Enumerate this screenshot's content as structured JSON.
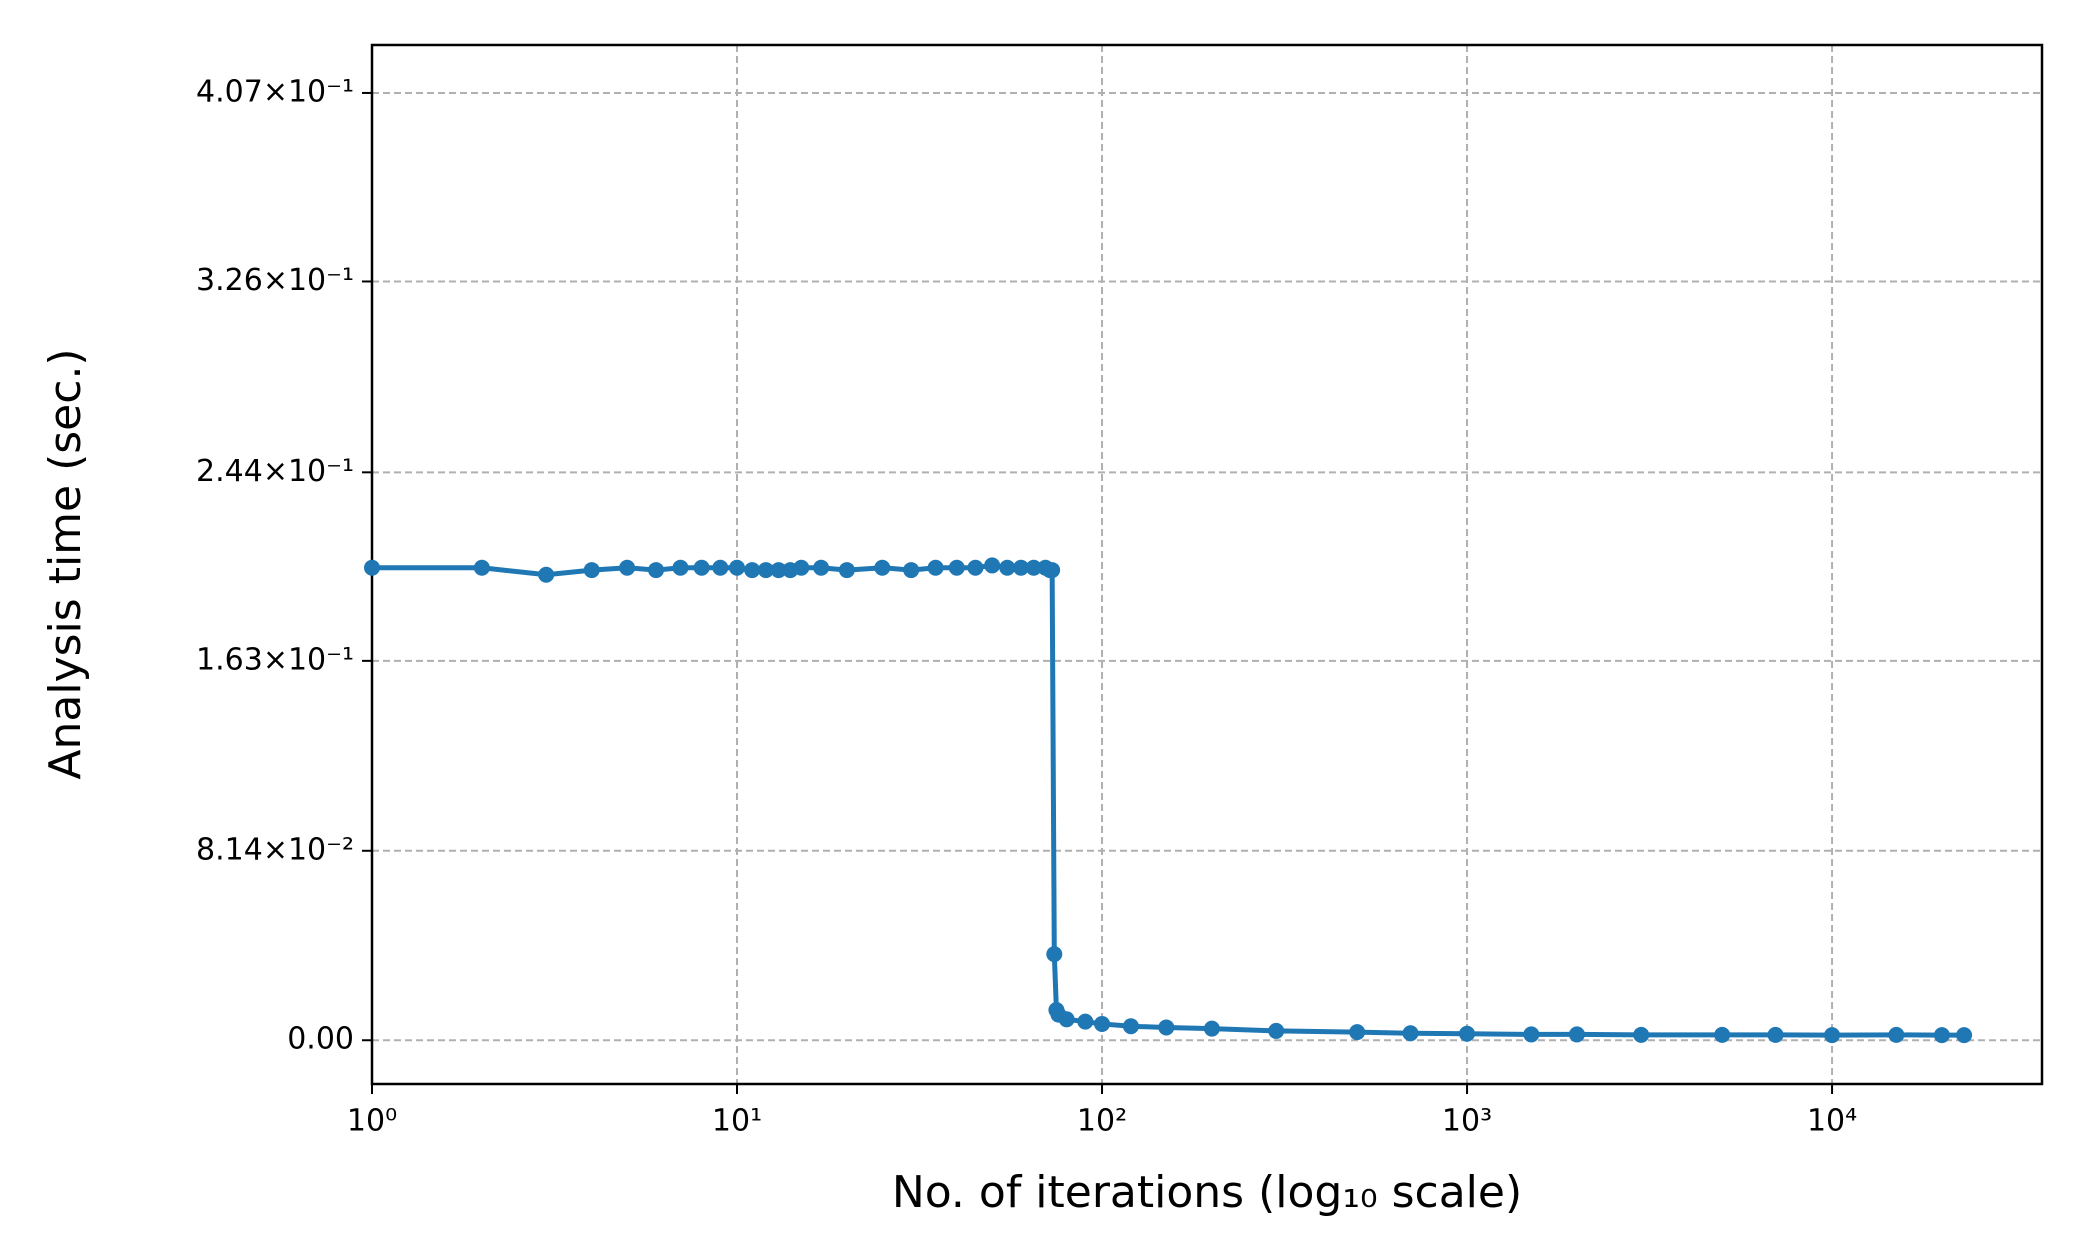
{
  "chart_data": {
    "type": "line",
    "x_label": "No. of iterations (log₁₀ scale)",
    "y_label": "Analysis time (sec.)",
    "x_scale": "log",
    "grid": true,
    "xlim": [
      1,
      37600
    ],
    "ylim": [
      -0.0188,
      0.4276
    ],
    "xticks": [
      {
        "value": 1,
        "label": "10⁰"
      },
      {
        "value": 10,
        "label": "10¹"
      },
      {
        "value": 100,
        "label": "10²"
      },
      {
        "value": 1000,
        "label": "10³"
      },
      {
        "value": 10000,
        "label": "10⁴"
      }
    ],
    "yticks": [
      {
        "value": 0,
        "label": "0.00"
      },
      {
        "value": 0.0814,
        "label": "8.14×10⁻²"
      },
      {
        "value": 0.163,
        "label": "1.63×10⁻¹"
      },
      {
        "value": 0.244,
        "label": "2.44×10⁻¹"
      },
      {
        "value": 0.326,
        "label": "3.26×10⁻¹"
      },
      {
        "value": 0.407,
        "label": "4.07×10⁻¹"
      }
    ],
    "x": [
      1,
      2,
      3,
      4,
      5,
      6,
      7,
      8,
      9,
      10,
      11,
      12,
      13,
      14,
      15,
      17,
      20,
      25,
      30,
      35,
      40,
      45,
      50,
      55,
      60,
      65,
      70,
      72,
      73,
      74,
      75,
      76,
      80,
      90,
      100,
      120,
      150,
      200,
      300,
      500,
      700,
      1000,
      1500,
      2000,
      3000,
      5000,
      7000,
      10000,
      15000,
      20000,
      23000
    ],
    "series": [
      {
        "name": "Analysis time",
        "color": "#1f77b4",
        "values": [
          0.203,
          0.203,
          0.2,
          0.202,
          0.203,
          0.202,
          0.203,
          0.203,
          0.203,
          0.203,
          0.202,
          0.202,
          0.202,
          0.202,
          0.203,
          0.203,
          0.202,
          0.203,
          0.202,
          0.203,
          0.203,
          0.203,
          0.204,
          0.203,
          0.203,
          0.203,
          0.203,
          0.202,
          0.202,
          0.037,
          0.013,
          0.011,
          0.009,
          0.008,
          0.007,
          0.006,
          0.0055,
          0.005,
          0.004,
          0.0035,
          0.003,
          0.0028,
          0.0025,
          0.0025,
          0.0023,
          0.0023,
          0.0023,
          0.0022,
          0.0023,
          0.0022,
          0.0022
        ]
      }
    ]
  }
}
